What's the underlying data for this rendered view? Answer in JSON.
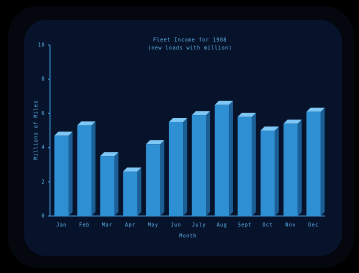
{
  "chart_data": {
    "type": "bar",
    "title": "Fleet Income for 1988",
    "subtitle": "(new loads with million)",
    "y_label": "Millions of Miles",
    "x_label": "Month",
    "categories": [
      "Jan",
      "Feb",
      "Mar",
      "Apr",
      "May",
      "Jun",
      "July",
      "Aug",
      "Sept",
      "Oct",
      "Nov",
      "Dec"
    ],
    "values": [
      4.7,
      5.3,
      3.5,
      2.6,
      4.2,
      5.5,
      5.9,
      6.5,
      5.8,
      5.0,
      5.4,
      6.1
    ],
    "color": "#2f8fd3",
    "ylim": [
      0,
      10
    ],
    "yticks": [
      0,
      2,
      4,
      6,
      8,
      10
    ]
  }
}
